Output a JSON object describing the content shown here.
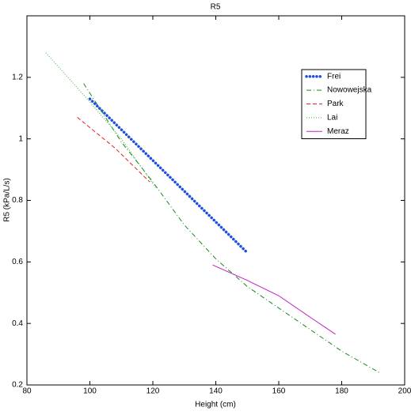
{
  "chart_data": {
    "type": "line",
    "title": "R5",
    "x_label": "Height (cm)",
    "y_label": "R5 (kPa/L/s)",
    "xlim": [
      80,
      200
    ],
    "xticks": [
      80,
      100,
      120,
      140,
      160,
      180,
      200
    ],
    "ylim": [
      0.2,
      1.4
    ],
    "yticks": [
      0.2,
      0.4,
      0.6,
      0.8,
      1,
      1.2
    ],
    "legend": "top-right",
    "series": [
      {
        "name": "Frei",
        "color": "#1f4fe0",
        "style": "dotted",
        "x": [
          100,
          105,
          110,
          115,
          120,
          125,
          130,
          135,
          140,
          145,
          150
        ],
        "values": [
          1.13,
          1.08,
          1.03,
          0.98,
          0.93,
          0.88,
          0.83,
          0.78,
          0.73,
          0.68,
          0.63
        ]
      },
      {
        "name": "Nowowejska",
        "color": "#1a8a1a",
        "style": "dash-dot",
        "x": [
          98,
          110,
          120,
          130,
          140,
          150,
          160,
          170,
          180,
          192
        ],
        "values": [
          1.18,
          0.99,
          0.86,
          0.72,
          0.61,
          0.52,
          0.45,
          0.38,
          0.31,
          0.24
        ]
      },
      {
        "name": "Park",
        "color": "#e02020",
        "style": "dashed",
        "x": [
          96,
          108,
          119
        ],
        "values": [
          1.07,
          0.97,
          0.86
        ]
      },
      {
        "name": "Lai",
        "color": "#30b030",
        "style": "fine-dotted",
        "x": [
          86,
          100,
          110,
          121
        ],
        "values": [
          1.28,
          1.12,
          1.0,
          0.84
        ]
      },
      {
        "name": "Meraz",
        "color": "#c020c0",
        "style": "solid",
        "x": [
          139,
          150,
          160,
          170,
          178
        ],
        "values": [
          0.59,
          0.54,
          0.49,
          0.42,
          0.365
        ]
      }
    ]
  }
}
